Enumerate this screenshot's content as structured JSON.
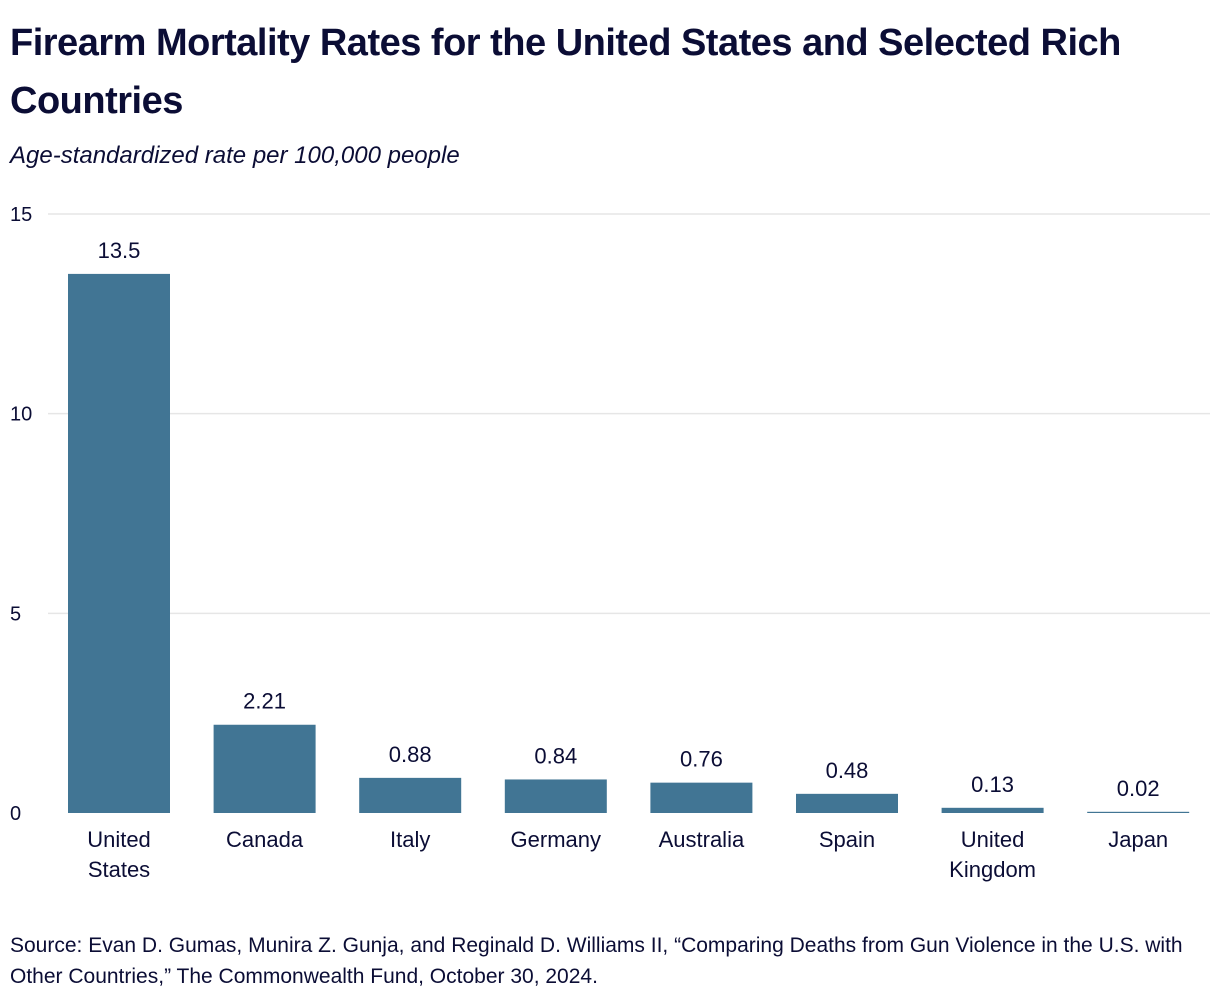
{
  "title": "Firearm Mortality Rates for the United States and Selected Rich Countries",
  "subtitle": "Age-standardized rate per 100,000 people",
  "source": "Source: Evan D. Gumas, Munira Z. Gunja, and Reginald D. Williams II, “Comparing Deaths from Gun Violence in the U.S. with Other Countries,” The Commonwealth Fund, October 30, 2024.",
  "colors": {
    "bar": "#417594",
    "grid": "#e6e6e6",
    "text": "#0b0d35"
  },
  "chart_data": {
    "type": "bar",
    "title": "Firearm Mortality Rates for the United States and Selected Rich Countries",
    "subtitle": "Age-standardized rate per 100,000 people",
    "xlabel": "",
    "ylabel": "",
    "categories": [
      [
        "United",
        "States"
      ],
      [
        "Canada"
      ],
      [
        "Italy"
      ],
      [
        "Germany"
      ],
      [
        "Australia"
      ],
      [
        "Spain"
      ],
      [
        "United",
        "Kingdom"
      ],
      [
        "Japan"
      ]
    ],
    "values": [
      13.5,
      2.21,
      0.88,
      0.84,
      0.76,
      0.48,
      0.13,
      0.02
    ],
    "value_labels": [
      "13.5",
      "2.21",
      "0.88",
      "0.84",
      "0.76",
      "0.48",
      "0.13",
      "0.02"
    ],
    "ylim": [
      0,
      15
    ],
    "yticks": [
      0,
      5,
      10,
      15
    ],
    "grid": true,
    "legend": "none"
  }
}
